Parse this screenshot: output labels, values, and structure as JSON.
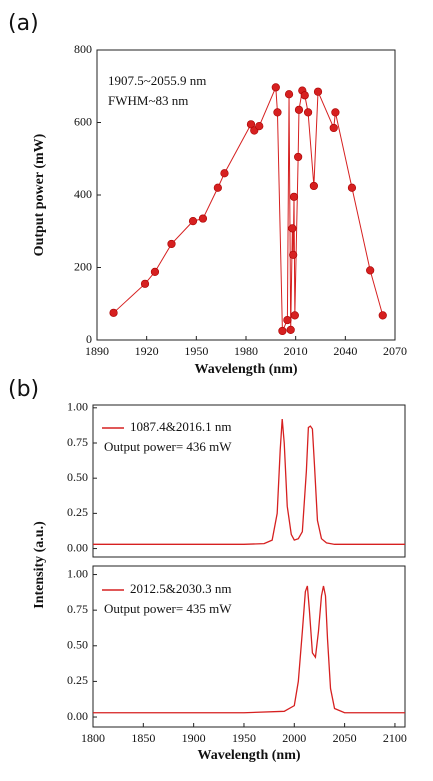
{
  "chart_data": [
    {
      "type": "line",
      "panel_label": "(a)",
      "markers": true,
      "xlabel": "Wavelength (nm)",
      "ylabel": "Output power (mW)",
      "annotations": [
        "1907.5~2055.9 nm",
        "FWHM~83 nm"
      ],
      "xlim": [
        1890,
        2070
      ],
      "xticks": [
        1890,
        1920,
        1950,
        1980,
        2010,
        2040,
        2070
      ],
      "ylim": [
        0,
        800
      ],
      "yticks": [
        0,
        200,
        400,
        600,
        800
      ],
      "x": [
        1900,
        1919,
        1925,
        1935,
        1948,
        1954,
        1963,
        1967,
        1983,
        1985,
        1988,
        1998,
        1999,
        2002,
        2005,
        2006,
        2007,
        2008,
        2008.5,
        2009,
        2009.5,
        2011.5,
        2012,
        2014,
        2015.5,
        2017.5,
        2021,
        2023.5,
        2033,
        2034,
        2044,
        2055,
        2062.6
      ],
      "series": [
        {
          "color": "#d62020",
          "values": [
            75,
            155,
            188,
            265,
            328,
            335,
            420,
            460,
            595,
            578,
            590,
            697,
            628,
            25,
            55,
            678,
            28,
            308,
            235,
            395,
            68,
            505,
            635,
            688,
            675,
            628,
            425,
            685,
            585,
            628,
            420,
            192,
            68
          ]
        }
      ]
    },
    {
      "type": "line",
      "panel_label": "(b)",
      "ylabel": "Intensity (a.u.)",
      "annotations": [
        "Output power= 436 mW"
      ],
      "xlim": [
        1800,
        2110
      ],
      "ylim": [
        -0.06,
        1.02
      ],
      "yticks": [
        {
          "value": 0,
          "label": "0.00"
        },
        {
          "value": 0.25,
          "label": "0.25"
        },
        {
          "value": 0.5,
          "label": "0.50"
        },
        {
          "value": 0.75,
          "label": "0.75"
        },
        {
          "value": 1,
          "label": "1.00"
        }
      ],
      "x": [
        1800,
        1850,
        1900,
        1950,
        1970,
        1978,
        1983,
        1986,
        1988,
        1990,
        1993,
        1997,
        2000,
        2004,
        2008,
        2012,
        2014,
        2016,
        2018,
        2020,
        2023,
        2027,
        2032,
        2040,
        2060,
        2080,
        2110
      ],
      "series": [
        {
          "name": "1087.4&2016.1 nm",
          "color": "#d62020",
          "values": [
            0.03,
            0.03,
            0.03,
            0.03,
            0.035,
            0.06,
            0.25,
            0.7,
            0.92,
            0.75,
            0.3,
            0.1,
            0.06,
            0.07,
            0.12,
            0.55,
            0.86,
            0.87,
            0.85,
            0.6,
            0.2,
            0.07,
            0.04,
            0.03,
            0.03,
            0.03,
            0.03
          ]
        }
      ]
    },
    {
      "type": "line",
      "xlabel": "Wavelength (nm)",
      "annotations": [
        "Output power= 435 mW"
      ],
      "xlim": [
        1800,
        2110
      ],
      "xticks": [
        1800,
        1850,
        1900,
        1950,
        2000,
        2050,
        2100
      ],
      "ylim": [
        -0.07,
        1.06
      ],
      "yticks": [
        {
          "value": 0,
          "label": "0.00"
        },
        {
          "value": 0.25,
          "label": "0.25"
        },
        {
          "value": 0.5,
          "label": "0.50"
        },
        {
          "value": 0.75,
          "label": "0.75"
        },
        {
          "value": 1,
          "label": "1.00"
        }
      ],
      "x": [
        1800,
        1850,
        1900,
        1950,
        1990,
        2000,
        2004,
        2008,
        2011,
        2013,
        2015,
        2018,
        2021,
        2024,
        2027,
        2029,
        2031,
        2033,
        2036,
        2040,
        2050,
        2080,
        2110
      ],
      "series": [
        {
          "name": "2012.5&2030.3 nm",
          "color": "#d62020",
          "values": [
            0.03,
            0.03,
            0.03,
            0.03,
            0.04,
            0.08,
            0.25,
            0.6,
            0.88,
            0.92,
            0.75,
            0.45,
            0.42,
            0.6,
            0.85,
            0.92,
            0.85,
            0.55,
            0.2,
            0.06,
            0.03,
            0.03,
            0.03
          ]
        }
      ]
    }
  ]
}
